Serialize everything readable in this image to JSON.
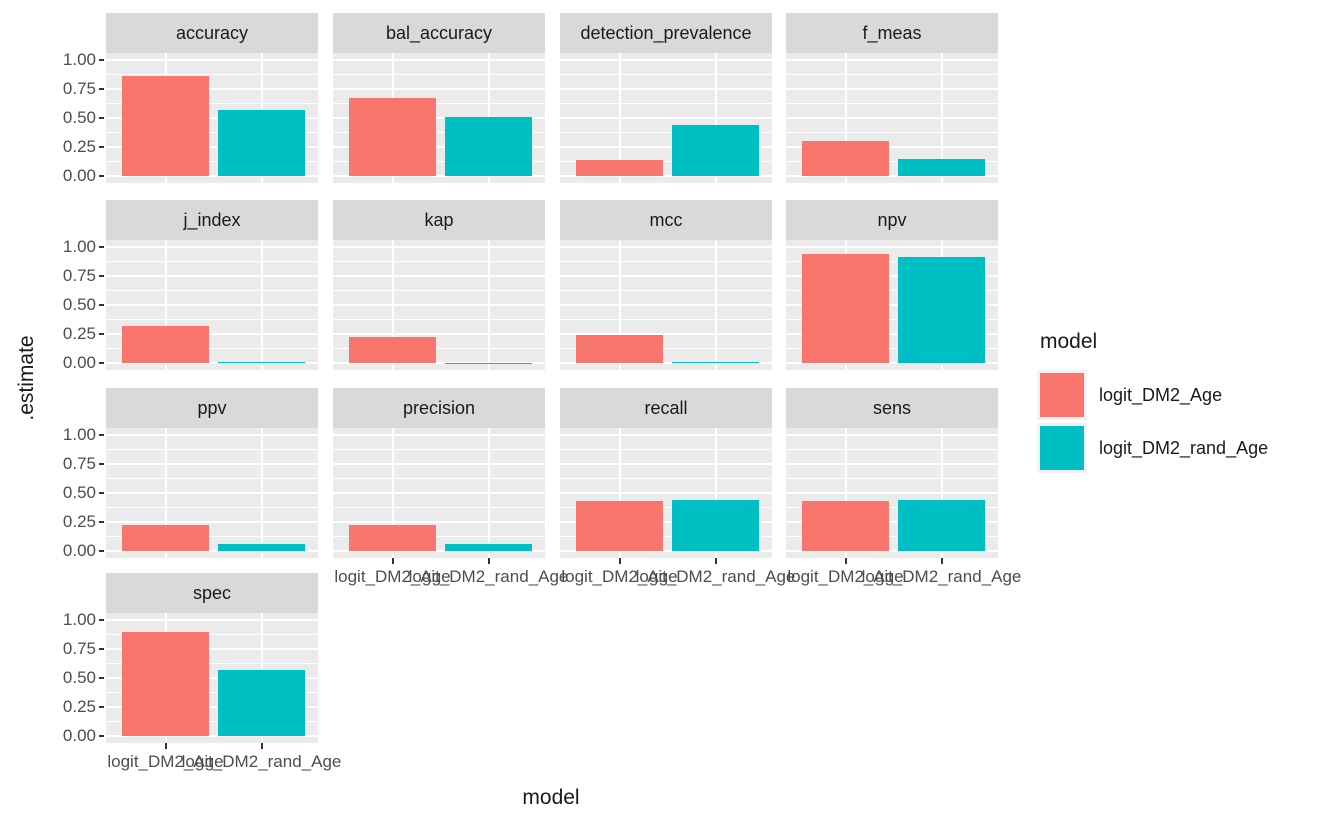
{
  "y_axis": {
    "title": ".estimate",
    "ticks": [
      "1.00",
      "0.75",
      "0.50",
      "0.25",
      "0.00"
    ],
    "tick_values": [
      1.0,
      0.75,
      0.5,
      0.25,
      0.0
    ]
  },
  "x_axis": {
    "title": "model",
    "tick_labels": [
      "logit_DM2_Age",
      "logit_DM2_rand_Age"
    ]
  },
  "legend": {
    "title": "model",
    "entries": [
      {
        "label": "logit_DM2_Age",
        "color": "#F8766D"
      },
      {
        "label": "logit_DM2_rand_Age",
        "color": "#00BFC4"
      }
    ]
  },
  "colors": {
    "series1": "#F8766D",
    "series2": "#00BFC4",
    "panel_bg": "#EBEBEB",
    "strip_bg": "#D9D9D9",
    "grid": "#FFFFFF",
    "axis_text": "#4D4D4D",
    "tick_mark": "#333333"
  },
  "chart_data": {
    "type": "bar",
    "faceted": true,
    "facet_columns": 4,
    "series": [
      {
        "name": "logit_DM2_Age",
        "color": "#F8766D"
      },
      {
        "name": "logit_DM2_rand_Age",
        "color": "#00BFC4"
      }
    ],
    "facets": [
      {
        "name": "accuracy",
        "values": [
          0.86,
          0.57
        ]
      },
      {
        "name": "bal_accuracy",
        "values": [
          0.67,
          0.51
        ]
      },
      {
        "name": "detection_prevalence",
        "values": [
          0.14,
          0.44
        ]
      },
      {
        "name": "f_meas",
        "values": [
          0.3,
          0.15
        ]
      },
      {
        "name": "j_index",
        "values": [
          0.32,
          0.008
        ]
      },
      {
        "name": "kap",
        "values": [
          0.22,
          0.002
        ]
      },
      {
        "name": "mcc",
        "values": [
          0.24,
          0.008
        ]
      },
      {
        "name": "npv",
        "values": [
          0.94,
          0.91
        ]
      },
      {
        "name": "ppv",
        "values": [
          0.22,
          0.06
        ]
      },
      {
        "name": "precision",
        "values": [
          0.22,
          0.06
        ]
      },
      {
        "name": "recall",
        "values": [
          0.43,
          0.44
        ]
      },
      {
        "name": "sens",
        "values": [
          0.43,
          0.44
        ]
      },
      {
        "name": "spec",
        "values": [
          0.9,
          0.57
        ]
      }
    ],
    "title": "",
    "xlabel": "model",
    "ylabel": ".estimate",
    "ylim": [
      0,
      1.0
    ],
    "major_gridlines": [
      0,
      0.25,
      0.5,
      0.75,
      1.0
    ],
    "minor_gridlines": [
      0.125,
      0.375,
      0.625,
      0.875
    ],
    "grid": true,
    "legend_position": "right"
  }
}
